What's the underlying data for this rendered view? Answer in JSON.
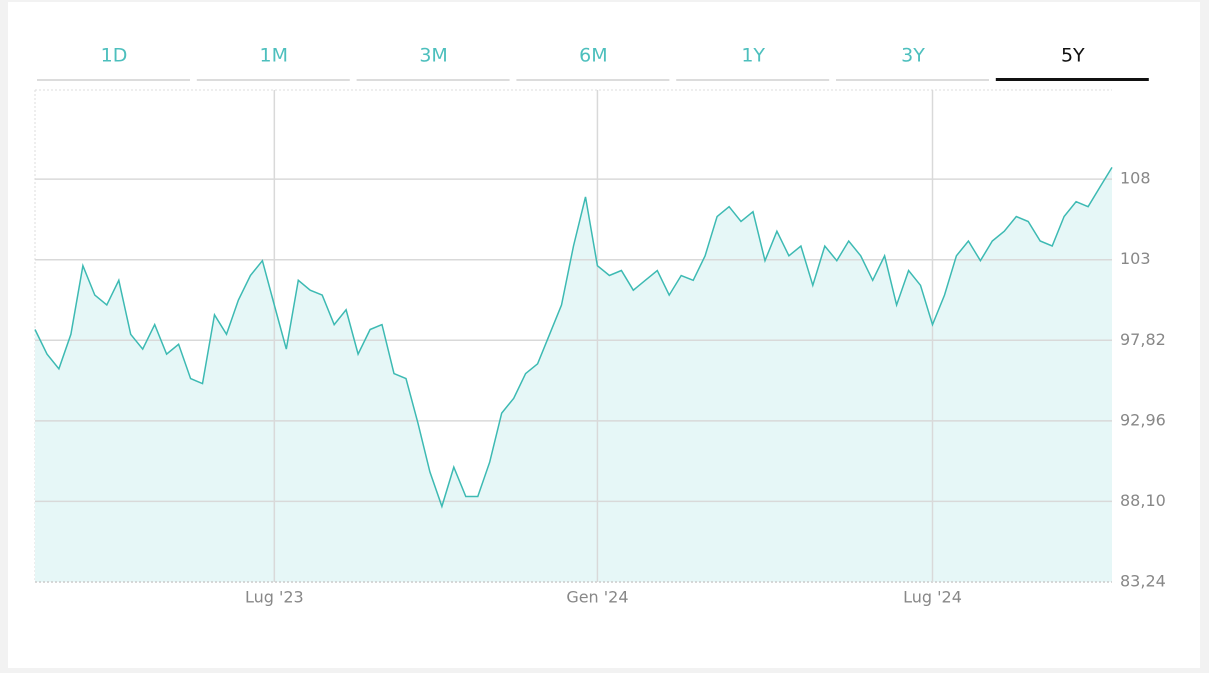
{
  "tabs": [
    "1D",
    "1M",
    "3M",
    "6M",
    "1Y",
    "3Y",
    "5Y"
  ],
  "active_tab": 6,
  "chart_data": {
    "type": "line",
    "categories": [
      null,
      null,
      null,
      null,
      null,
      null,
      null,
      null,
      null,
      null,
      null,
      null,
      null,
      null,
      null,
      null,
      null,
      null,
      null,
      null,
      "Lug '23",
      null,
      null,
      null,
      null,
      null,
      null,
      null,
      null,
      null,
      null,
      null,
      null,
      null,
      null,
      null,
      null,
      null,
      null,
      null,
      null,
      null,
      null,
      null,
      null,
      null,
      null,
      "Gen '24",
      null,
      null,
      null,
      null,
      null,
      null,
      null,
      null,
      null,
      null,
      null,
      null,
      null,
      null,
      null,
      null,
      null,
      null,
      null,
      null,
      null,
      null,
      null,
      null,
      null,
      null,
      null,
      "Lug '24",
      null,
      null,
      null,
      null,
      null,
      null,
      null,
      null,
      null,
      null,
      null,
      null,
      null,
      null,
      null
    ],
    "values": [
      98.47,
      96.99,
      96.1,
      98.18,
      102.32,
      100.55,
      99.95,
      101.44,
      98.18,
      97.29,
      98.77,
      96.99,
      97.58,
      95.51,
      95.21,
      99.36,
      98.18,
      100.25,
      101.73,
      102.62,
      99.95,
      97.29,
      101.44,
      100.84,
      100.55,
      98.77,
      99.66,
      96.99,
      98.47,
      98.77,
      95.81,
      95.51,
      92.84,
      89.88,
      87.8,
      90.17,
      88.4,
      88.4,
      90.47,
      93.43,
      94.32,
      95.81,
      96.4,
      98.18,
      99.95,
      103.51,
      106.47,
      102.32,
      101.73,
      102.03,
      100.84,
      101.44,
      102.03,
      100.55,
      101.73,
      101.44,
      102.92,
      105.29,
      105.88,
      104.99,
      105.58,
      102.62,
      104.4,
      102.92,
      103.51,
      101.14,
      103.51,
      102.62,
      103.81,
      102.92,
      101.44,
      102.92,
      99.95,
      102.03,
      101.14,
      98.77,
      100.55,
      102.92,
      103.81,
      102.62,
      103.81,
      104.4,
      105.29,
      104.99,
      103.81,
      103.51,
      105.29,
      106.18,
      105.88,
      107.07,
      108.25
    ],
    "color": "#3dbab3",
    "fill": "#e6f7f7",
    "ylim": [
      83.24,
      112.92
    ],
    "yticks": [
      {
        "value": 83.24,
        "label": "83,24"
      },
      {
        "value": 88.1,
        "label": "88,10"
      },
      {
        "value": 92.96,
        "label": "92,96"
      },
      {
        "value": 97.82,
        "label": "97,82"
      },
      {
        "value": 102.68,
        "label": "103"
      },
      {
        "value": 107.54,
        "label": "108"
      }
    ],
    "grid": true
  }
}
